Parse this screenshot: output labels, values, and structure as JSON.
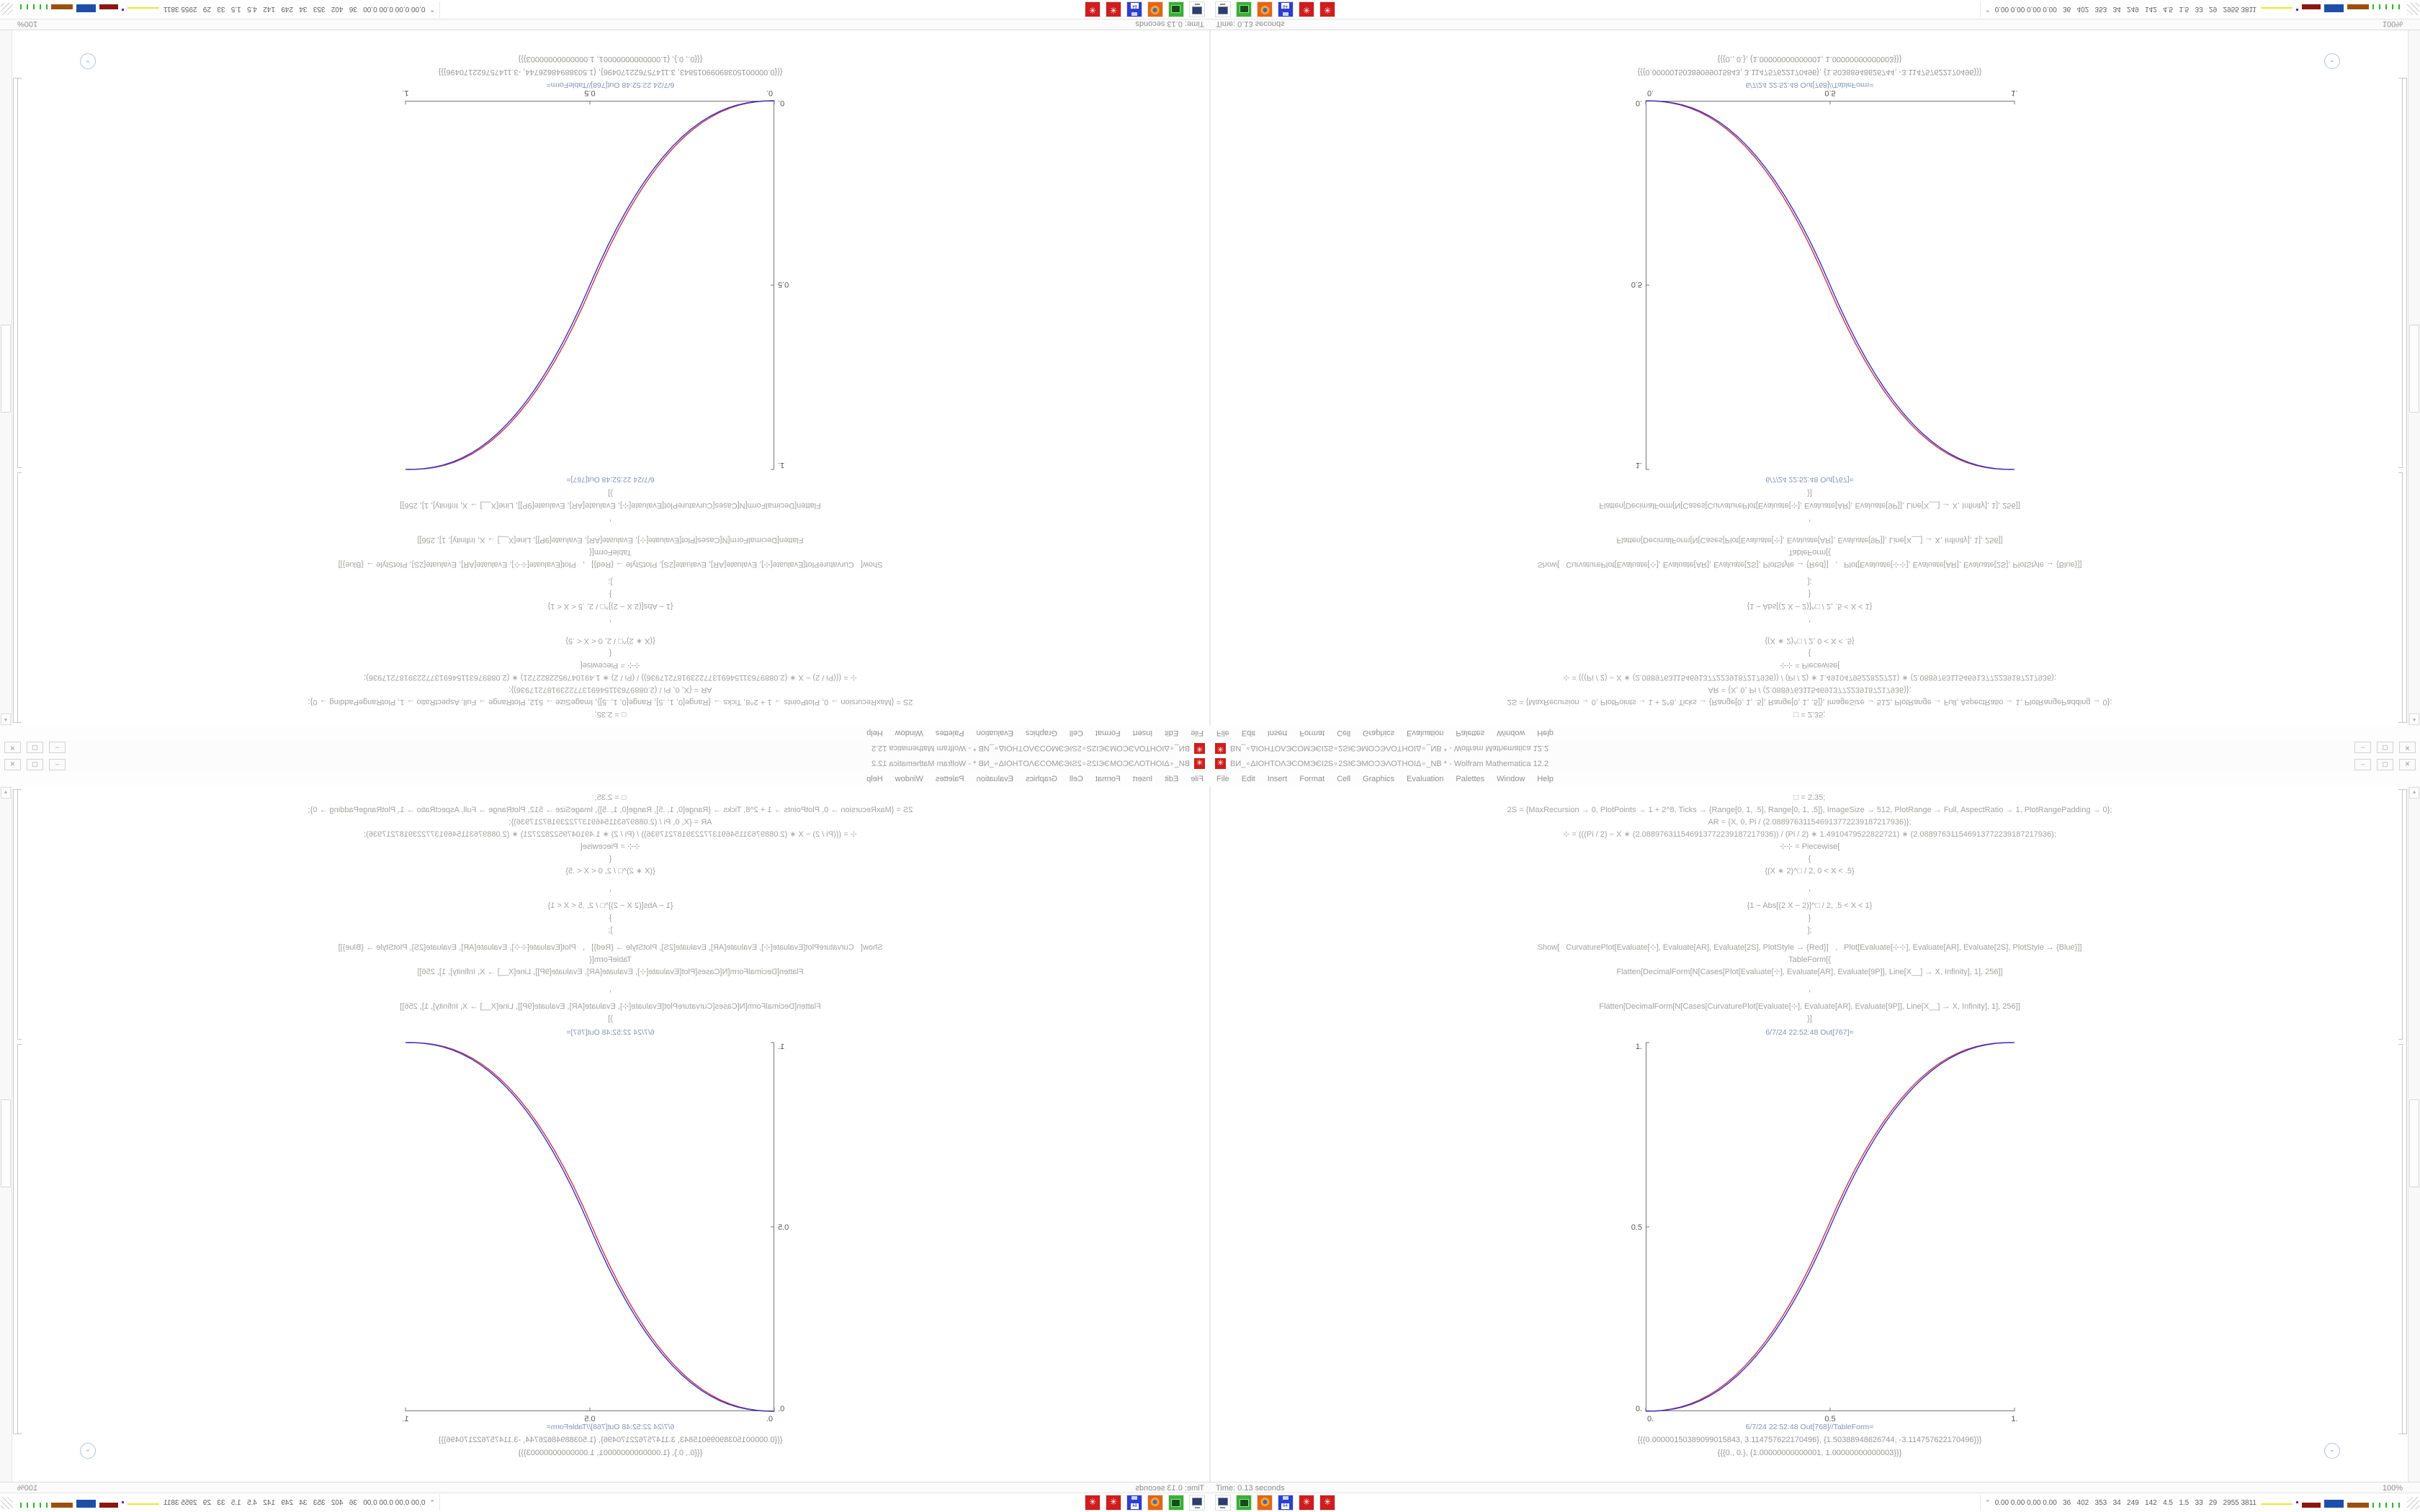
{
  "desktop": {
    "window": {
      "icon_glyph": "✳",
      "title": "ВИ_∘ΔΙΟΗΤΟΛЭCOMЭЄΙ2Ѕ∘2ЅΙЄЭMOϽЭΛΟΤΗΟΙΔ∘_NB * - Wolfram Mathematica 12.2",
      "buttons": {
        "minimize": "–",
        "maximize": "▢",
        "close": "✕"
      },
      "menu": [
        "File",
        "Edit",
        "Insert",
        "Format",
        "Cell",
        "Graphics",
        "Evaluation",
        "Palettes",
        "Window",
        "Help"
      ]
    },
    "notebook": {
      "code_lines": [
        {
          "t": "□ = 2.35;"
        },
        {
          "t": "2S = {MaxRecursion → 0, PlotPoints → 1 + 2^8, Ticks → {Range[0, 1, .5], Range[0, 1, .5]}, ImageSize → 512, PlotRange → Full, AspectRatio → 1, PlotRangePadding → 0};"
        },
        {
          "t": "AR = {X, 0, Pi / (2.088976311546913772239187217936)};"
        },
        {
          "t": "⊹ = (((Pi / 2) − X ∗ (2.088976311546913772239187217936)) / (Pi / 2) ∗ 1.4910479522822721) ∗ (2.088976311546913772239187217936);"
        },
        {
          "t": "⊹⊹ = Piecewise["
        },
        {
          "t": "{"
        },
        {
          "t": "{(X ∗ 2)^□ / 2, 0 < X < .5}"
        },
        {
          "t": ",",
          "g": 1
        },
        {
          "t": "{1 − Abs[(2 X − 2)]^□ / 2, .5 < X < 1}",
          "g": 1
        },
        {
          "t": "}"
        },
        {
          "t": "];"
        },
        {
          "t": "Show[   CurvaturePlot[Evaluate[⊹], Evaluate[AR], Evaluate[2S], PlotStyle → {Red}]   ,   Plot[Evaluate[⊹⊹], Evaluate[AR], Evaluate[2S], PlotStyle → {Blue}]]",
          "g": 1
        },
        {
          "t": "TableForm[{"
        },
        {
          "t": "Flatten[DecimalForm[N[Cases[Plot[Evaluate[⊹], Evaluate[AR], Evaluate[9P]], Line[X__] → X, Infinity], 1], 256]]"
        },
        {
          "t": ",",
          "g": 1
        },
        {
          "t": "Flatten[DecimalForm[N[Cases[CurvaturePlot[Evaluate[⊹], Evaluate[AR], Evaluate[9P]], Line[X__] → X, Infinity], 1], 256]]",
          "g": 1
        },
        {
          "t": "}]"
        }
      ],
      "out1_label": "6/7/24 22:52:48 Out[767]=",
      "out2_label": "6/7/24 22:52:48 Out[768]//TableForm=",
      "out2_line1": "{{{0.00000150389099015843, 3.114757622170496}, {1.50388948626744, -3.114757622170496}}}",
      "out2_line2": "{{{0., 0.}, {1.00000000000001, 1.00000000000003}}}",
      "scroll_pill_glyph": "⌄",
      "scrollbar_up_glyph": "▴"
    },
    "status": {
      "time": "Time: 0.13 seconds",
      "zoom_level": "100%"
    },
    "taskbar": {
      "icons": [
        "display-icon",
        "package-icon",
        "firefox-icon",
        "floppy-64-icon",
        "gear-red-icon",
        "gear-red-icon"
      ],
      "floppy_label": "64",
      "monitor_chevron": "⌃",
      "monitor_text": "0.00 0.00 0.00 0.00   36   402   353   34   249   142   4.5   1.5   33   29   2955 3811"
    }
  },
  "quadrants": [
    {
      "id": "top-left",
      "orientation": "rotated-180"
    },
    {
      "id": "top-right",
      "orientation": "flipped-vertical"
    },
    {
      "id": "bottom-left",
      "orientation": "flipped-horizontal"
    },
    {
      "id": "bottom-right",
      "orientation": "original"
    }
  ],
  "chart_data": {
    "type": "line",
    "title": "",
    "xlabel": "",
    "ylabel": "",
    "xlim": [
      0,
      1
    ],
    "ylim": [
      0,
      1
    ],
    "grid": false,
    "legend": "none",
    "xticks": [
      {
        "v": 0,
        "label": "0."
      },
      {
        "v": 0.5,
        "label": "0.5"
      },
      {
        "v": 1,
        "label": "1."
      }
    ],
    "yticks": [
      {
        "v": 0,
        "label": "0."
      },
      {
        "v": 0.5,
        "label": "0.5"
      },
      {
        "v": 1,
        "label": "1."
      }
    ],
    "x": [
      0,
      0.025,
      0.05,
      0.075,
      0.1,
      0.125,
      0.15,
      0.175,
      0.2,
      0.225,
      0.25,
      0.275,
      0.3,
      0.325,
      0.35,
      0.375,
      0.4,
      0.425,
      0.45,
      0.475,
      0.5,
      0.525,
      0.55,
      0.575,
      0.6,
      0.625,
      0.65,
      0.675,
      0.7,
      0.725,
      0.75,
      0.775,
      0.8,
      0.825,
      0.85,
      0.875,
      0.9,
      0.925,
      0.95,
      0.975,
      1
    ],
    "series": [
      {
        "name": "CurvaturePlot (Red)",
        "color": "#cc3344",
        "x_offset": -0.006,
        "values": [
          0,
          0.0004,
          0.0022,
          0.0058,
          0.0114,
          0.0192,
          0.0295,
          0.0424,
          0.058,
          0.0766,
          0.0981,
          0.1227,
          0.1505,
          0.1817,
          0.2163,
          0.2543,
          0.2959,
          0.3413,
          0.3902,
          0.4432,
          0.5,
          0.5568,
          0.6098,
          0.6587,
          0.7041,
          0.7457,
          0.7837,
          0.8183,
          0.8495,
          0.8773,
          0.9019,
          0.9234,
          0.942,
          0.9576,
          0.9705,
          0.9808,
          0.9886,
          0.9942,
          0.9978,
          0.9996,
          1
        ]
      },
      {
        "name": "Plot (Blue)",
        "color": "#3333cc",
        "x_offset": 0,
        "values": [
          0,
          0.0004,
          0.0022,
          0.0058,
          0.0114,
          0.0192,
          0.0295,
          0.0424,
          0.058,
          0.0766,
          0.0981,
          0.1227,
          0.1505,
          0.1817,
          0.2163,
          0.2543,
          0.2959,
          0.3413,
          0.3902,
          0.4432,
          0.5,
          0.5568,
          0.6098,
          0.6587,
          0.7041,
          0.7457,
          0.7837,
          0.8183,
          0.8495,
          0.8773,
          0.9019,
          0.9234,
          0.942,
          0.9576,
          0.9705,
          0.9808,
          0.9886,
          0.9942,
          0.9978,
          0.9996,
          1
        ]
      }
    ]
  }
}
